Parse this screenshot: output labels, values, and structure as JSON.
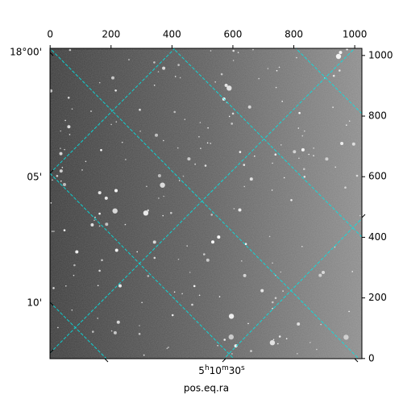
{
  "chart_data": {
    "type": "image",
    "xlabel": "pos.eq.ra",
    "xlim": [
      -0.5,
      1023.5
    ],
    "ylim": [
      -0.5,
      1023.5
    ],
    "xticks": [
      0,
      200,
      400,
      600,
      800,
      1000
    ],
    "yticks": [
      0,
      200,
      400,
      600,
      800,
      1000
    ],
    "dec_tick_labels": [
      "18°00'",
      "05'",
      "10'"
    ],
    "ra_tick_label": [
      "5",
      "h",
      "10",
      "m",
      "30",
      "s"
    ]
  }
}
